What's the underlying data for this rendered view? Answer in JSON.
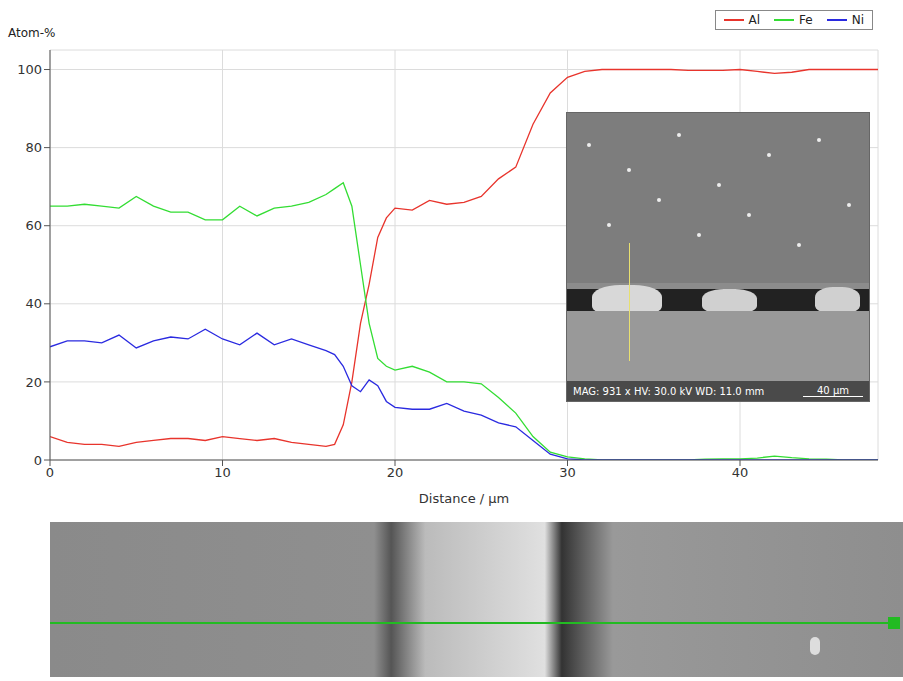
{
  "chart_data": {
    "type": "line",
    "y_label": "Atom-%",
    "x_label": "Distance / µm",
    "x": [
      0,
      1,
      2,
      3,
      4,
      5,
      6,
      7,
      8,
      9,
      10,
      11,
      12,
      13,
      14,
      15,
      16,
      16.5,
      17,
      17.5,
      18,
      18.5,
      19,
      19.5,
      20,
      21,
      22,
      23,
      24,
      25,
      26,
      27,
      28,
      29,
      30,
      31,
      32,
      33,
      34,
      35,
      36,
      37,
      38,
      39,
      40,
      41,
      42,
      43,
      44,
      45,
      46,
      47,
      48
    ],
    "series": [
      {
        "name": "Al",
        "color": "#e8342c",
        "values": [
          6,
          4.5,
          4,
          4,
          3.5,
          4.5,
          5,
          5.5,
          5.5,
          5,
          6,
          5.5,
          5,
          5.5,
          4.5,
          4,
          3.5,
          4,
          9,
          20,
          35,
          45,
          57,
          62,
          64.5,
          64,
          66.5,
          65.5,
          66,
          67.5,
          72,
          75,
          86,
          94,
          98,
          99.5,
          100,
          100,
          100,
          100,
          100,
          99.8,
          99.8,
          99.8,
          100,
          99.5,
          99,
          99.3,
          100,
          100,
          100,
          100,
          100
        ]
      },
      {
        "name": "Fe",
        "color": "#33dd33",
        "values": [
          65,
          65,
          65.5,
          65,
          64.5,
          67.5,
          65,
          63.5,
          63.5,
          61.5,
          61.5,
          65,
          62.5,
          64.5,
          65,
          66,
          68,
          69.5,
          71,
          65,
          50,
          35,
          26,
          24,
          23,
          24,
          22.5,
          20,
          20,
          19.5,
          16,
          12,
          6,
          2,
          0.8,
          0.3,
          0,
          0,
          0,
          0,
          0,
          0,
          0.2,
          0.3,
          0.3,
          0.5,
          1,
          0.6,
          0.3,
          0.2,
          0,
          0,
          0
        ]
      },
      {
        "name": "Ni",
        "color": "#2a2ae0",
        "values": [
          29,
          30.5,
          30.5,
          30,
          32,
          28.7,
          30.5,
          31.5,
          31,
          33.5,
          31,
          29.5,
          32.5,
          29.5,
          31,
          29.5,
          28,
          27,
          24,
          19,
          17.5,
          20.5,
          19,
          15,
          13.5,
          13,
          13,
          14.5,
          12.5,
          11.5,
          9.5,
          8.5,
          5,
          1.5,
          0.3,
          0,
          0,
          0,
          0,
          0,
          0,
          0,
          0,
          0,
          0,
          0,
          0,
          0,
          0,
          0,
          0,
          0,
          0
        ]
      }
    ],
    "xlim": [
      0,
      48
    ],
    "xticks": [
      0,
      10,
      20,
      30,
      40
    ],
    "ylim": [
      0,
      105
    ],
    "yticks": [
      0,
      20,
      40,
      60,
      80,
      100
    ],
    "grid": true,
    "legend": "top-right",
    "annotations": [
      "MAG: 931 x HV: 30.0 kV WD: 11.0 mm",
      "40 µm"
    ]
  }
}
